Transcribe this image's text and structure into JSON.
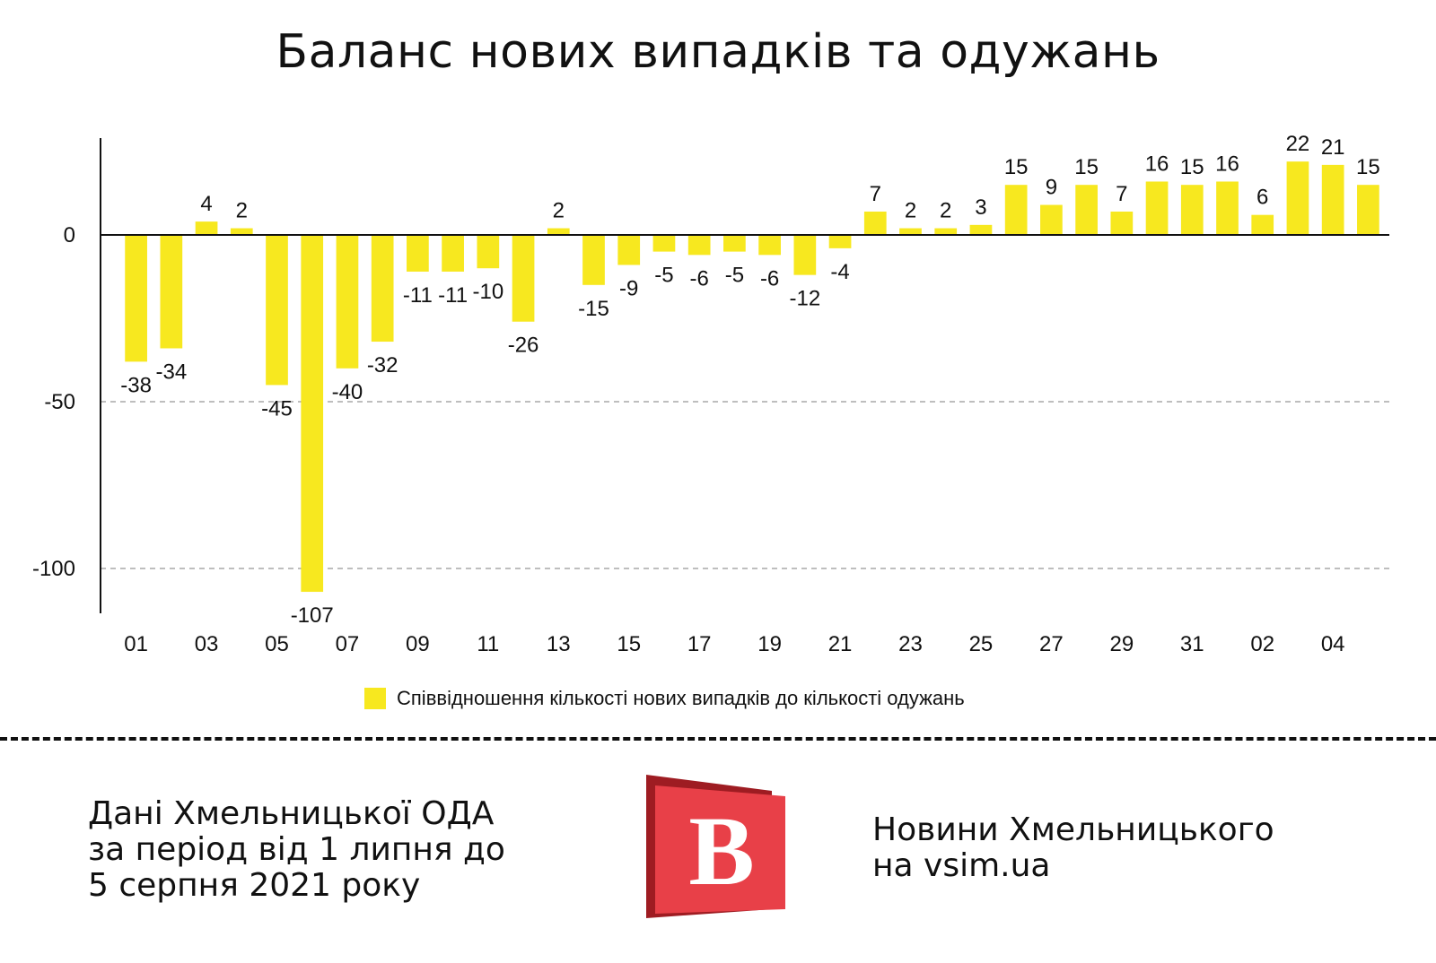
{
  "colors": {
    "bar": "#f7e81f",
    "grid": "#a8a8a8",
    "axis": "#111111",
    "logo_red": "#e84048",
    "logo_dark": "#9e1c22"
  },
  "chart_data": {
    "type": "bar",
    "title": "Баланс нових випадків та одужань",
    "categories": [
      "01",
      "02",
      "03",
      "04",
      "05",
      "06",
      "07",
      "08",
      "09",
      "10",
      "11",
      "12",
      "13",
      "14",
      "15",
      "16",
      "17",
      "18",
      "19",
      "20",
      "21",
      "22",
      "23",
      "24",
      "25",
      "26",
      "27",
      "28",
      "29",
      "30",
      "31",
      "01",
      "02",
      "03",
      "04",
      "05"
    ],
    "tick_labels": [
      "01",
      "03",
      "05",
      "07",
      "09",
      "11",
      "13",
      "15",
      "17",
      "19",
      "21",
      "23",
      "25",
      "27",
      "29",
      "31",
      "02",
      "04"
    ],
    "series": [
      {
        "name": "Співвідношення кількості нових випадків до кількості одужань",
        "values": [
          -38,
          -34,
          4,
          2,
          -45,
          -107,
          -40,
          -32,
          -11,
          -11,
          -10,
          -26,
          2,
          -15,
          -9,
          -5,
          -6,
          -5,
          -6,
          -12,
          -4,
          7,
          2,
          2,
          3,
          15,
          9,
          15,
          7,
          16,
          15,
          16,
          6,
          22,
          21,
          15
        ]
      }
    ],
    "y_ticks": [
      0,
      -50,
      -100
    ],
    "ylim": [
      -112,
      28
    ],
    "grid": "dashed horizontal at y ticks",
    "legend_position": "bottom"
  },
  "footer": {
    "source_lines": [
      "Дані Хмельницької ОДА",
      "за період від 1 липня до",
      "5 серпня 2021 року"
    ],
    "site_lines": [
      "Новини Хмельницького",
      "на vsim.ua"
    ],
    "logo_letter": "B"
  }
}
